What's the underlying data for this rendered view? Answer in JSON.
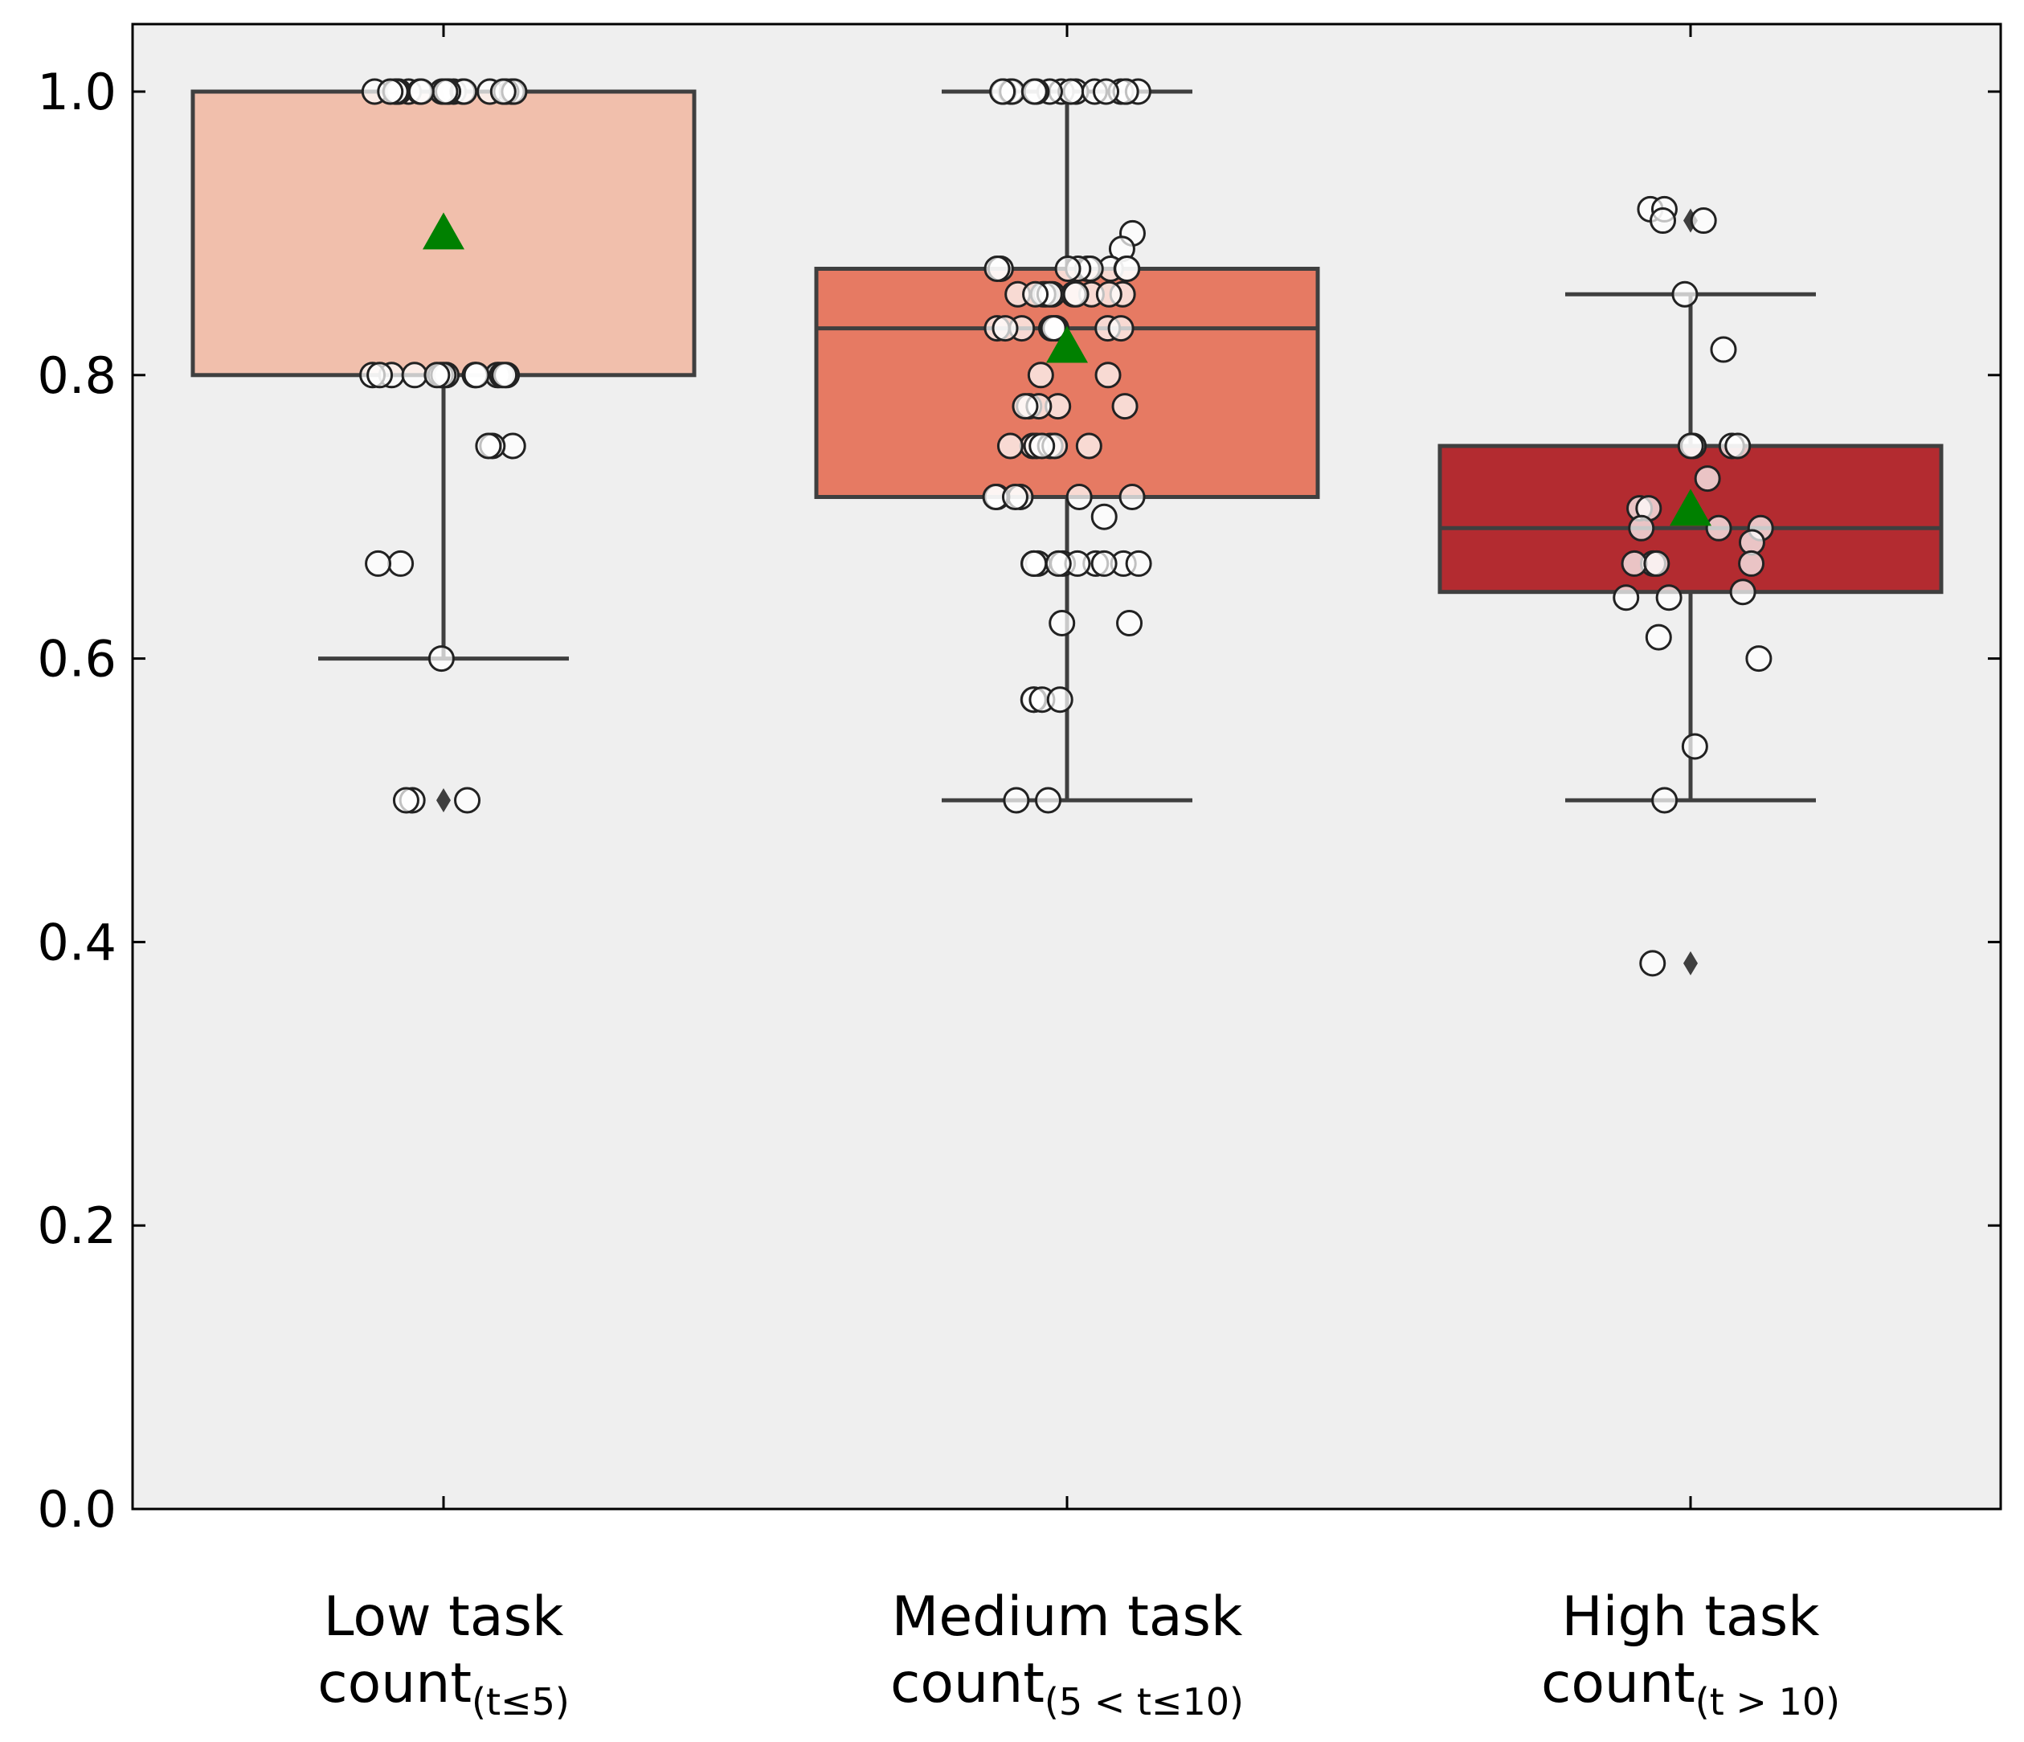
{
  "chart_data": {
    "type": "box",
    "title": "",
    "xlabel": "",
    "ylabel": "",
    "ylim": [
      0,
      1.05
    ],
    "yticks": [
      "0.0",
      "0.2",
      "0.4",
      "0.6",
      "0.8",
      "1.0"
    ],
    "grid": false,
    "background": "#efefef",
    "mean_marker_color": "#008000",
    "categories": [
      {
        "main": "Low task",
        "count_word": "count",
        "sub": "(t≤5)",
        "color": "#f1bfac",
        "q1": 0.8,
        "median": 1.0,
        "q3": 1.0,
        "whisker_low": 0.6,
        "whisker_high": 1.0,
        "mean": 0.9,
        "outliers": [
          0.5
        ],
        "points": [
          1.0,
          1.0,
          1.0,
          1.0,
          1.0,
          1.0,
          1.0,
          1.0,
          1.0,
          1.0,
          1.0,
          1.0,
          1.0,
          1.0,
          1.0,
          1.0,
          1.0,
          1.0,
          1.0,
          1.0,
          1.0,
          1.0,
          0.8,
          0.8,
          0.8,
          0.8,
          0.8,
          0.8,
          0.8,
          0.8,
          0.8,
          0.8,
          0.8,
          0.8,
          0.8,
          0.8,
          0.8,
          0.8,
          0.75,
          0.75,
          0.75,
          0.667,
          0.667,
          0.6,
          0.5,
          0.5,
          0.5
        ]
      },
      {
        "main": "Medium task",
        "count_word": "count",
        "sub": "(5 < t≤10)",
        "color": "#e67a63",
        "q1": 0.714,
        "median": 0.833,
        "q3": 0.875,
        "whisker_low": 0.5,
        "whisker_high": 1.0,
        "mean": 0.82,
        "outliers": [],
        "points": [
          1.0,
          1.0,
          1.0,
          1.0,
          1.0,
          1.0,
          1.0,
          1.0,
          1.0,
          1.0,
          1.0,
          1.0,
          1.0,
          1.0,
          1.0,
          1.0,
          0.9,
          0.889,
          0.875,
          0.875,
          0.875,
          0.875,
          0.875,
          0.875,
          0.875,
          0.875,
          0.875,
          0.857,
          0.857,
          0.857,
          0.857,
          0.857,
          0.857,
          0.857,
          0.857,
          0.857,
          0.857,
          0.857,
          0.833,
          0.833,
          0.833,
          0.833,
          0.833,
          0.833,
          0.833,
          0.833,
          0.833,
          0.8,
          0.8,
          0.778,
          0.778,
          0.778,
          0.778,
          0.778,
          0.75,
          0.75,
          0.75,
          0.75,
          0.75,
          0.75,
          0.75,
          0.714,
          0.714,
          0.714,
          0.714,
          0.714,
          0.714,
          0.7,
          0.667,
          0.667,
          0.667,
          0.667,
          0.667,
          0.667,
          0.667,
          0.667,
          0.667,
          0.667,
          0.625,
          0.625,
          0.571,
          0.571,
          0.571,
          0.571,
          0.5,
          0.5
        ]
      },
      {
        "main": "High task",
        "count_word": "count",
        "sub": "(t > 10)",
        "color": "#b32b30",
        "q1": 0.647,
        "median": 0.692,
        "q3": 0.75,
        "whisker_low": 0.5,
        "whisker_high": 0.857,
        "mean": 0.705,
        "outliers": [
          0.909,
          0.385
        ],
        "points": [
          0.917,
          0.917,
          0.909,
          0.909,
          0.857,
          0.818,
          0.75,
          0.75,
          0.75,
          0.75,
          0.727,
          0.706,
          0.706,
          0.692,
          0.692,
          0.692,
          0.682,
          0.667,
          0.667,
          0.667,
          0.667,
          0.647,
          0.643,
          0.643,
          0.615,
          0.6,
          0.538,
          0.5,
          0.385
        ]
      }
    ]
  }
}
